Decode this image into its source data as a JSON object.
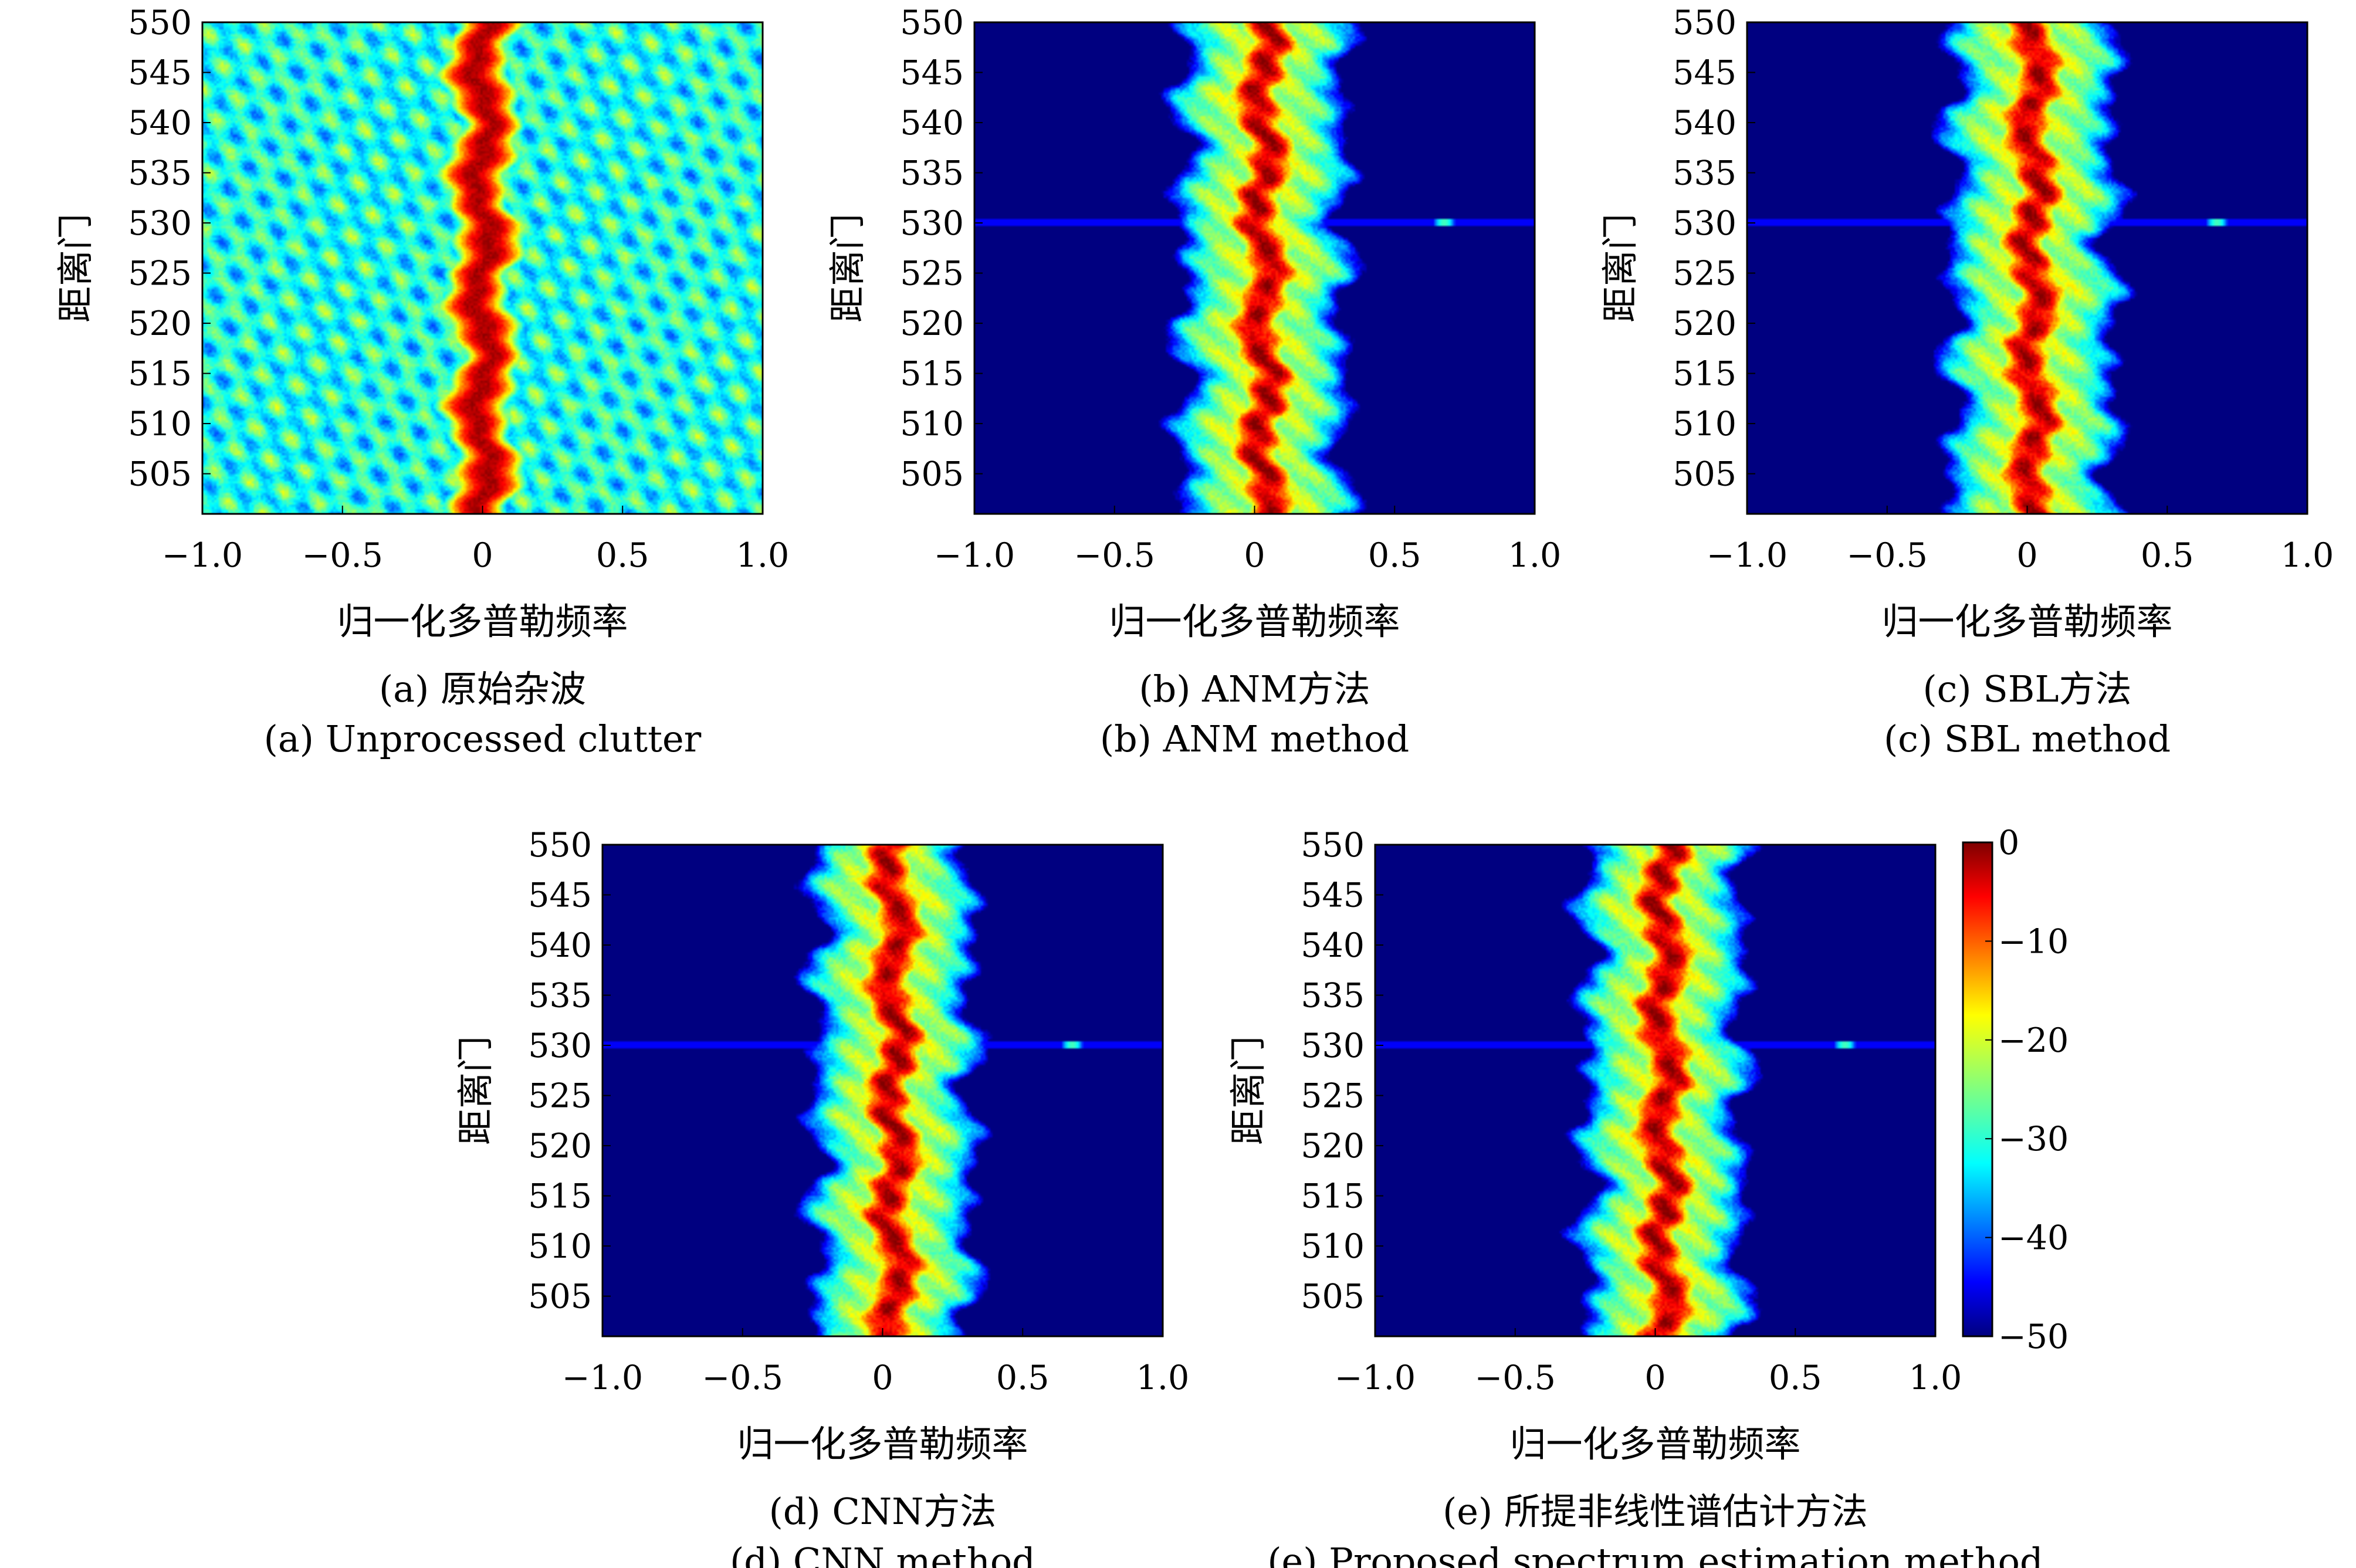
{
  "chart_data": [
    {
      "type": "heatmap",
      "xlabel": "归一化多普勒频率",
      "ylabel": "距离门",
      "xticks": [
        "−1.0",
        "−0.5",
        "0",
        "0.5",
        "1.0"
      ],
      "yticks": [
        "550",
        "545",
        "540",
        "535",
        "530",
        "525",
        "520",
        "515",
        "510",
        "505"
      ],
      "xlim": [
        -1.0,
        1.0
      ],
      "ylim": [
        501,
        550
      ],
      "caption_cn": "(a) 原始杂波",
      "caption_en": "(a) Unprocessed clutter",
      "clutter_center_freq": 0.0,
      "clutter_halfwidth": 0.12,
      "background_level_db": -30,
      "target": null
    },
    {
      "type": "heatmap",
      "xlabel": "归一化多普勒频率",
      "ylabel": "距离门",
      "xticks": [
        "−1.0",
        "−0.5",
        "0",
        "0.5",
        "1.0"
      ],
      "yticks": [
        "550",
        "545",
        "540",
        "535",
        "530",
        "525",
        "520",
        "515",
        "510",
        "505"
      ],
      "xlim": [
        -1.0,
        1.0
      ],
      "ylim": [
        501,
        550
      ],
      "caption_cn": "(b) ANM方法",
      "caption_en": "(b) ANM method",
      "clutter_center_freq": 0.03,
      "clutter_halfwidth": 0.28,
      "background_level_db": -50,
      "target": {
        "range_gate": 530,
        "freq": 0.68,
        "level_db": -30
      }
    },
    {
      "type": "heatmap",
      "xlabel": "归一化多普勒频率",
      "ylabel": "距离门",
      "xticks": [
        "−1.0",
        "−0.5",
        "0",
        "0.5",
        "1.0"
      ],
      "yticks": [
        "550",
        "545",
        "540",
        "535",
        "530",
        "525",
        "520",
        "515",
        "510",
        "505"
      ],
      "xlim": [
        -1.0,
        1.0
      ],
      "ylim": [
        501,
        550
      ],
      "caption_cn": "(c) SBL方法",
      "caption_en": "(c) SBL method",
      "clutter_center_freq": 0.02,
      "clutter_halfwidth": 0.28,
      "background_level_db": -50,
      "target": {
        "range_gate": 530,
        "freq": 0.68,
        "level_db": -30
      }
    },
    {
      "type": "heatmap",
      "xlabel": "归一化多普勒频率",
      "ylabel": "距离门",
      "xticks": [
        "−1.0",
        "−0.5",
        "0",
        "0.5",
        "1.0"
      ],
      "yticks": [
        "550",
        "545",
        "540",
        "535",
        "530",
        "525",
        "520",
        "515",
        "510",
        "505"
      ],
      "xlim": [
        -1.0,
        1.0
      ],
      "ylim": [
        501,
        550
      ],
      "caption_cn": "(d) CNN方法",
      "caption_en": "(d) CNN method",
      "clutter_center_freq": 0.04,
      "clutter_halfwidth": 0.27,
      "background_level_db": -50,
      "target": {
        "range_gate": 530,
        "freq": 0.68,
        "level_db": -30
      }
    },
    {
      "type": "heatmap",
      "xlabel": "归一化多普勒频率",
      "ylabel": "距离门",
      "xticks": [
        "−1.0",
        "−0.5",
        "0",
        "0.5",
        "1.0"
      ],
      "yticks": [
        "550",
        "545",
        "540",
        "535",
        "530",
        "525",
        "520",
        "515",
        "510",
        "505"
      ],
      "xlim": [
        -1.0,
        1.0
      ],
      "ylim": [
        501,
        550
      ],
      "caption_cn": "(e) 所提非线性谱估计方法",
      "caption_en": "(e) Proposed spectrum estimation method",
      "clutter_center_freq": 0.03,
      "clutter_halfwidth": 0.27,
      "background_level_db": -50,
      "target": {
        "range_gate": 530,
        "freq": 0.68,
        "level_db": -30
      }
    }
  ],
  "colorbar": {
    "ticks": [
      "0",
      "−10",
      "−20",
      "−30",
      "−40",
      "−50"
    ],
    "range": [
      -50,
      0
    ],
    "colormap": "jet"
  }
}
